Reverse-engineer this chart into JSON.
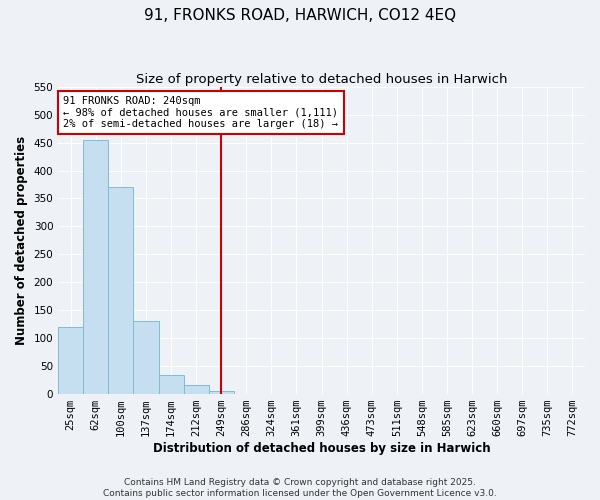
{
  "title": "91, FRONKS ROAD, HARWICH, CO12 4EQ",
  "subtitle": "Size of property relative to detached houses in Harwich",
  "xlabel": "Distribution of detached houses by size in Harwich",
  "ylabel": "Number of detached properties",
  "bin_labels": [
    "25sqm",
    "62sqm",
    "100sqm",
    "137sqm",
    "174sqm",
    "212sqm",
    "249sqm",
    "286sqm",
    "324sqm",
    "361sqm",
    "399sqm",
    "436sqm",
    "473sqm",
    "511sqm",
    "548sqm",
    "585sqm",
    "623sqm",
    "660sqm",
    "697sqm",
    "735sqm",
    "772sqm"
  ],
  "bar_heights": [
    120,
    455,
    370,
    130,
    35,
    16,
    5,
    1,
    0,
    0,
    0,
    0,
    0,
    0,
    0,
    0,
    0,
    0,
    0,
    0,
    1
  ],
  "bar_color": "#c6dff0",
  "bar_edge_color": "#7fbcd2",
  "vline_x_idx": 6,
  "vline_color": "#cc0000",
  "annotation_text": "91 FRONKS ROAD: 240sqm\n← 98% of detached houses are smaller (1,111)\n2% of semi-detached houses are larger (18) →",
  "annotation_box_color": "white",
  "annotation_box_edge_color": "#cc0000",
  "ylim": [
    0,
    550
  ],
  "yticks": [
    0,
    50,
    100,
    150,
    200,
    250,
    300,
    350,
    400,
    450,
    500,
    550
  ],
  "footer_line1": "Contains HM Land Registry data © Crown copyright and database right 2025.",
  "footer_line2": "Contains public sector information licensed under the Open Government Licence v3.0.",
  "background_color": "#eef2f7",
  "plot_bg_color": "#eef2f7",
  "grid_color": "#ffffff",
  "title_fontsize": 11,
  "subtitle_fontsize": 9.5,
  "axis_label_fontsize": 8.5,
  "tick_label_fontsize": 7.5,
  "annotation_fontsize": 7.5,
  "footer_fontsize": 6.5
}
